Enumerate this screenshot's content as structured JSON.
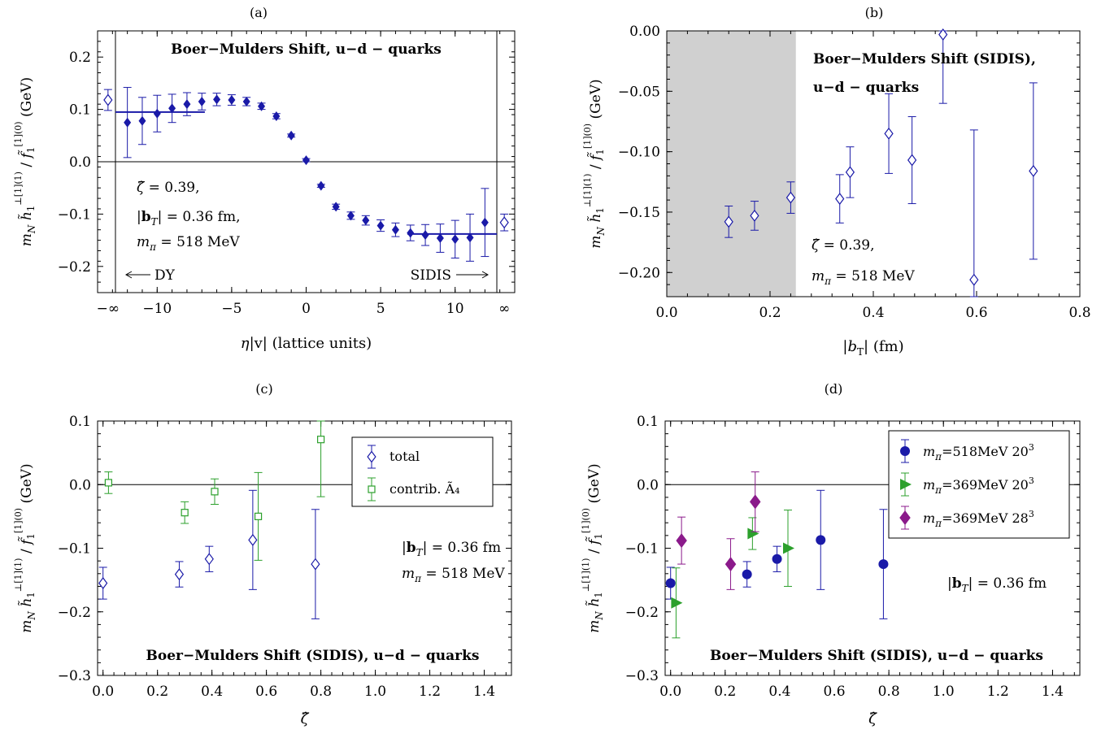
{
  "colors": {
    "blue": "#1a1aa8",
    "green": "#2ca02c",
    "purple": "#8b1a8b",
    "shade": "#d0d0d0",
    "axis": "#000000"
  },
  "chart_data": [
    {
      "id": "a",
      "type": "scatter",
      "panel_label": "(a)",
      "title": "Boer−Mulders Shift, u−d − quarks",
      "xlabel": "η|v|  (lattice units)",
      "ylabel": "m_N h̃₁^{⊥[1](1)} / f̃₁^{[1](0)} (GeV)",
      "xlim": [
        -14,
        14
      ],
      "ylim": [
        -0.25,
        0.25
      ],
      "xticks": [
        {
          "v": -10,
          "t": "−10"
        },
        {
          "v": -5,
          "t": "−5"
        },
        {
          "v": 0,
          "t": "0"
        },
        {
          "v": 5,
          "t": "5"
        },
        {
          "v": 10,
          "t": "10"
        }
      ],
      "special_ticks": [
        {
          "v": -13.3,
          "t": "−∞"
        },
        {
          "v": 13.3,
          "t": "∞"
        }
      ],
      "yticks": [
        {
          "v": 0.2,
          "t": "0.2"
        },
        {
          "v": 0.1,
          "t": "0.1"
        },
        {
          "v": 0.0,
          "t": "0.0"
        },
        {
          "v": -0.1,
          "t": "−0.1"
        },
        {
          "v": -0.2,
          "t": "−0.2"
        }
      ],
      "vlines": [
        -12.8,
        12.8
      ],
      "annotations": [
        "ζ̂ = 0.39,",
        "|b_T| = 0.36 fm,",
        "m_π = 518 MeV"
      ],
      "arrows": [
        {
          "label": "DY",
          "dir": "left"
        },
        {
          "label": "SIDIS",
          "dir": "right"
        }
      ],
      "plateaus": [
        {
          "x": [
            -12.8,
            -6.8
          ],
          "y": 0.095
        },
        {
          "x": [
            6.8,
            12.8
          ],
          "y": -0.138
        }
      ],
      "series": [
        {
          "marker": "diamond-filled",
          "color": "blue",
          "x": [
            -12,
            -11,
            -10,
            -9,
            -8,
            -7,
            -6,
            -5,
            -4,
            -3,
            -2,
            -1,
            0,
            1,
            2,
            3,
            4,
            5,
            6,
            7,
            8,
            9,
            10,
            11,
            12
          ],
          "y": [
            0.075,
            0.078,
            0.092,
            0.102,
            0.11,
            0.115,
            0.119,
            0.118,
            0.115,
            0.106,
            0.087,
            0.05,
            0.003,
            -0.046,
            -0.086,
            -0.103,
            -0.112,
            -0.122,
            -0.13,
            -0.136,
            -0.14,
            -0.146,
            -0.148,
            -0.145,
            -0.116
          ],
          "err": [
            0.067,
            0.045,
            0.035,
            0.027,
            0.022,
            0.016,
            0.012,
            0.01,
            0.008,
            0.006,
            0.005,
            0.003,
            0.003,
            0.003,
            0.005,
            0.007,
            0.009,
            0.011,
            0.013,
            0.015,
            0.02,
            0.027,
            0.036,
            0.045,
            0.065
          ]
        },
        {
          "marker": "diamond-open",
          "color": "blue",
          "x": [
            -13.3,
            13.3
          ],
          "y": [
            0.118,
            -0.116
          ],
          "err": [
            0.02,
            0.016
          ]
        }
      ]
    },
    {
      "id": "b",
      "type": "scatter",
      "panel_label": "(b)",
      "title_lines": [
        "Boer−Mulders Shift (SIDIS),",
        "u−d − quarks"
      ],
      "xlabel": "|b_T|  (fm)",
      "ylabel": "m_N h̃₁^{⊥[1](1)} / f̃₁^{[1](0)} (GeV)",
      "xlim": [
        0,
        0.8
      ],
      "ylim": [
        -0.22,
        0.0
      ],
      "xticks": [
        {
          "v": 0.0,
          "t": "0.0"
        },
        {
          "v": 0.2,
          "t": "0.2"
        },
        {
          "v": 0.4,
          "t": "0.4"
        },
        {
          "v": 0.6,
          "t": "0.6"
        },
        {
          "v": 0.8,
          "t": "0.8"
        }
      ],
      "yticks": [
        {
          "v": 0.0,
          "t": "0.00"
        },
        {
          "v": -0.05,
          "t": "−0.05"
        },
        {
          "v": -0.1,
          "t": "−0.10"
        },
        {
          "v": -0.15,
          "t": "−0.15"
        },
        {
          "v": -0.2,
          "t": "−0.20"
        }
      ],
      "shaded_region": [
        0,
        0.25
      ],
      "annotations": [
        "ζ̂ = 0.39,",
        "m_π = 518 MeV"
      ],
      "series": [
        {
          "marker": "diamond-open",
          "color": "blue",
          "x": [
            0.12,
            0.17,
            0.24,
            0.335,
            0.355,
            0.43,
            0.475,
            0.535,
            0.595,
            0.71
          ],
          "y": [
            -0.158,
            -0.153,
            -0.138,
            -0.139,
            -0.117,
            -0.085,
            -0.107,
            -0.003,
            -0.206,
            -0.116
          ],
          "err": [
            0.013,
            0.012,
            0.013,
            0.02,
            0.021,
            0.033,
            0.036,
            0.057,
            0.124,
            0.073
          ]
        }
      ]
    },
    {
      "id": "c",
      "type": "scatter",
      "panel_label": "(c)",
      "title": "Boer−Mulders Shift (SIDIS), u−d − quarks",
      "xlabel": "ζ̂",
      "ylabel": "m_N h̃₁^{⊥[1](1)} / f̃₁^{[1](0)} (GeV)",
      "xlim": [
        -0.02,
        1.5
      ],
      "ylim": [
        -0.3,
        0.1
      ],
      "xticks": [
        {
          "v": 0.0,
          "t": "0.0"
        },
        {
          "v": 0.2,
          "t": "0.2"
        },
        {
          "v": 0.4,
          "t": "0.4"
        },
        {
          "v": 0.6,
          "t": "0.6"
        },
        {
          "v": 0.8,
          "t": "0.8"
        },
        {
          "v": 1.0,
          "t": "1.0"
        },
        {
          "v": 1.2,
          "t": "1.2"
        },
        {
          "v": 1.4,
          "t": "1.4"
        }
      ],
      "yticks": [
        {
          "v": 0.1,
          "t": "0.1"
        },
        {
          "v": 0.0,
          "t": "0.0"
        },
        {
          "v": -0.1,
          "t": "−0.1"
        },
        {
          "v": -0.2,
          "t": "−0.2"
        },
        {
          "v": -0.3,
          "t": "−0.3"
        }
      ],
      "annotations": [
        "|b_T| = 0.36 fm",
        "m_π = 518 MeV"
      ],
      "legend": "top-right",
      "series": [
        {
          "name": "total",
          "marker": "diamond-open",
          "color": "blue",
          "x": [
            0.0,
            0.28,
            0.39,
            0.55,
            0.78
          ],
          "y": [
            -0.155,
            -0.141,
            -0.117,
            -0.087,
            -0.125
          ],
          "err": [
            0.025,
            0.02,
            0.02,
            0.078,
            0.086
          ]
        },
        {
          "name": "contrib. Ã₄",
          "marker": "square-open",
          "color": "green",
          "x": [
            0.02,
            0.3,
            0.41,
            0.57,
            0.8
          ],
          "y": [
            0.003,
            -0.044,
            -0.011,
            -0.05,
            0.071
          ],
          "err": [
            0.017,
            0.017,
            0.02,
            0.069,
            0.09
          ]
        }
      ]
    },
    {
      "id": "d",
      "type": "scatter",
      "panel_label": "(d)",
      "title": "Boer−Mulders Shift (SIDIS), u−d − quarks",
      "xlabel": "ζ̂",
      "ylabel": "m_N h̃₁^{⊥[1](1)} / f̃₁^{[1](0)} (GeV)",
      "xlim": [
        -0.02,
        1.5
      ],
      "ylim": [
        -0.3,
        0.1
      ],
      "xticks": [
        {
          "v": 0.0,
          "t": "0.0"
        },
        {
          "v": 0.2,
          "t": "0.2"
        },
        {
          "v": 0.4,
          "t": "0.4"
        },
        {
          "v": 0.6,
          "t": "0.6"
        },
        {
          "v": 0.8,
          "t": "0.8"
        },
        {
          "v": 1.0,
          "t": "1.0"
        },
        {
          "v": 1.2,
          "t": "1.2"
        },
        {
          "v": 1.4,
          "t": "1.4"
        }
      ],
      "yticks": [
        {
          "v": 0.1,
          "t": "0.1"
        },
        {
          "v": 0.0,
          "t": "0.0"
        },
        {
          "v": -0.1,
          "t": "−0.1"
        },
        {
          "v": -0.2,
          "t": "−0.2"
        },
        {
          "v": -0.3,
          "t": "−0.3"
        }
      ],
      "annotations": [
        "|b_T| = 0.36 fm"
      ],
      "legend": "top-right",
      "series": [
        {
          "name": "m_π=518MeV 20³",
          "marker": "circle-filled",
          "color": "blue",
          "x": [
            0.0,
            0.28,
            0.39,
            0.55,
            0.78
          ],
          "y": [
            -0.155,
            -0.141,
            -0.117,
            -0.087,
            -0.125
          ],
          "err": [
            0.025,
            0.02,
            0.02,
            0.078,
            0.086
          ]
        },
        {
          "name": "m_π=369MeV 20³",
          "marker": "triangle-right-filled",
          "color": "green",
          "x": [
            0.02,
            0.3,
            0.43
          ],
          "y": [
            -0.186,
            -0.077,
            -0.1
          ],
          "err": [
            0.055,
            0.025,
            0.06
          ]
        },
        {
          "name": "m_π=369MeV 28³",
          "marker": "diamond-filled",
          "color": "purple",
          "x": [
            0.04,
            0.22,
            0.31
          ],
          "y": [
            -0.088,
            -0.125,
            -0.027
          ],
          "err": [
            0.037,
            0.04,
            0.047
          ]
        }
      ]
    }
  ]
}
